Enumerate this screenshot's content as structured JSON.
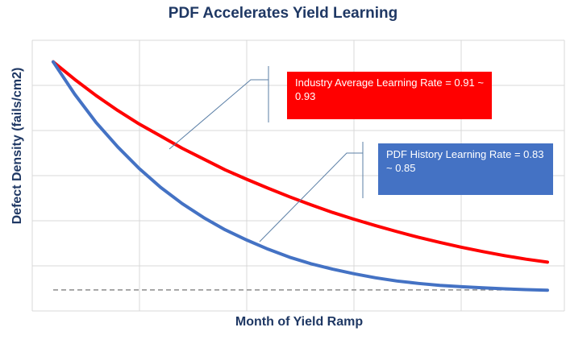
{
  "chart_data": {
    "type": "line",
    "title": "PDF Accelerates Yield Learning",
    "xlabel": "Month of Yield Ramp",
    "ylabel": "Defect Density (fails/cm2)",
    "xlim": [
      0,
      23
    ],
    "ylim": [
      0,
      1
    ],
    "grid": true,
    "series": [
      {
        "color": "#ff0000",
        "x": [
          0,
          1,
          2,
          3,
          4,
          5,
          6,
          7,
          8,
          9,
          10,
          11,
          12,
          13,
          14,
          15,
          16,
          17,
          18,
          19,
          20,
          21,
          22,
          23
        ],
        "values": [
          0.92,
          0.855,
          0.795,
          0.74,
          0.69,
          0.645,
          0.6,
          0.56,
          0.52,
          0.485,
          0.452,
          0.42,
          0.39,
          0.362,
          0.337,
          0.313,
          0.291,
          0.27,
          0.251,
          0.233,
          0.217,
          0.202,
          0.189,
          0.178
        ]
      },
      {
        "color": "#4472c4",
        "x": [
          0,
          1,
          2,
          3,
          4,
          5,
          6,
          7,
          8,
          9,
          10,
          11,
          12,
          13,
          14,
          15,
          16,
          17,
          18,
          19,
          20,
          21,
          22,
          23
        ],
        "values": [
          0.92,
          0.8,
          0.695,
          0.605,
          0.525,
          0.455,
          0.395,
          0.343,
          0.298,
          0.26,
          0.226,
          0.196,
          0.172,
          0.152,
          0.135,
          0.12,
          0.108,
          0.099,
          0.092,
          0.087,
          0.083,
          0.079,
          0.076,
          0.074
        ]
      }
    ],
    "baseline": 0.075,
    "annotations": [
      {
        "text": "Industry Average Learning Rate = 0.91 ~ 0.93",
        "color": "#ff0000"
      },
      {
        "text": "PDF History Learning Rate = 0.83 ~ 0.85",
        "color": "#4472c4"
      }
    ]
  }
}
